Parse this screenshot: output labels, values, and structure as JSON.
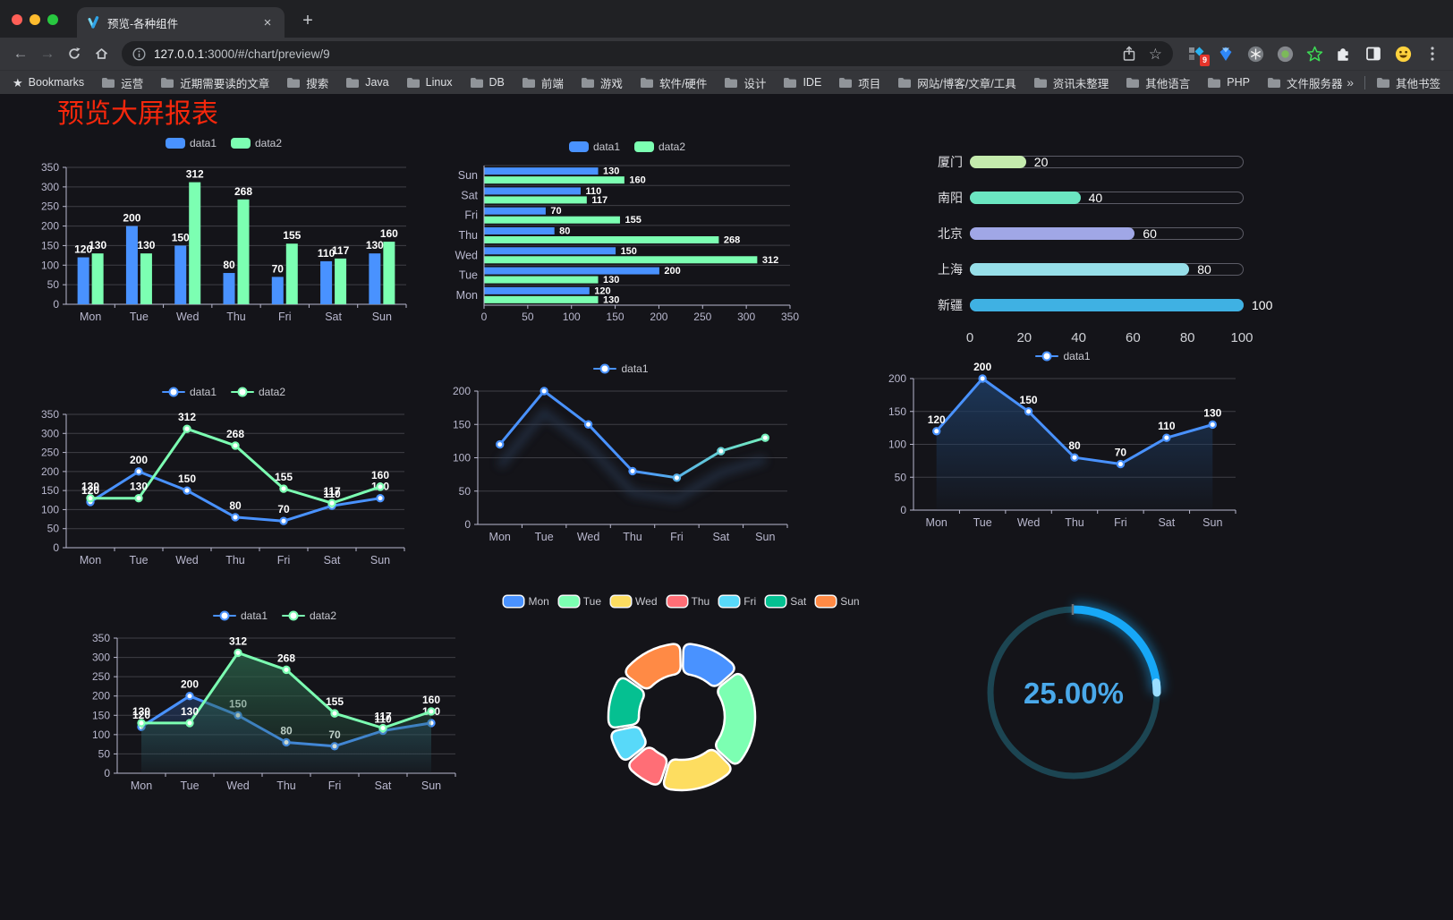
{
  "browser": {
    "tab": {
      "title": "预览-各种组件",
      "close_glyph": "×"
    },
    "new_tab_label": "+",
    "url": {
      "host": "127.0.0.1",
      "rest": ":3000/#/chart/preview/9"
    },
    "extensions_badge": "9",
    "bookmarks": {
      "first_label": "Bookmarks",
      "folders": [
        "运营",
        "近期需要读的文章",
        "搜索",
        "Java",
        "Linux",
        "DB",
        "前端",
        "游戏",
        "软件/硬件",
        "设计",
        "IDE",
        "项目",
        "网站/博客/文章/工具",
        "资讯未整理",
        "其他语言",
        "PHP",
        "文件服务器"
      ],
      "overflow_glyph": "»",
      "other_label": "其他书签"
    }
  },
  "page": {
    "title": "预览大屏报表",
    "title_color": "#f5270c",
    "background": "#141419"
  },
  "chart_data": [
    {
      "id": "bar-vertical",
      "type": "bar",
      "categories": [
        "Mon",
        "Tue",
        "Wed",
        "Thu",
        "Fri",
        "Sat",
        "Sun"
      ],
      "series": [
        {
          "name": "data1",
          "color": "#4992ff",
          "values": [
            120,
            200,
            150,
            80,
            70,
            110,
            130
          ]
        },
        {
          "name": "data2",
          "color": "#7cffb2",
          "values": [
            130,
            130,
            312,
            268,
            155,
            117,
            160
          ]
        }
      ],
      "ylim": [
        0,
        350
      ],
      "ystep": 50,
      "value_labels": true,
      "legend_position": "top",
      "grid": true
    },
    {
      "id": "bar-horizontal",
      "type": "bar-horizontal",
      "categories": [
        "Mon",
        "Tue",
        "Wed",
        "Thu",
        "Fri",
        "Sat",
        "Sun"
      ],
      "display_order_top_to_bottom": [
        "Sun",
        "Sat",
        "Fri",
        "Thu",
        "Wed",
        "Tue",
        "Mon"
      ],
      "series": [
        {
          "name": "data1",
          "color": "#4992ff",
          "values": [
            120,
            200,
            150,
            80,
            70,
            110,
            130
          ]
        },
        {
          "name": "data2",
          "color": "#7cffb2",
          "values": [
            130,
            130,
            312,
            268,
            155,
            117,
            160
          ]
        }
      ],
      "xlim": [
        0,
        350
      ],
      "xstep": 50,
      "value_labels": true,
      "legend_position": "top",
      "grid": true
    },
    {
      "id": "progress-bars",
      "type": "bar-progress",
      "xlim": [
        0,
        100
      ],
      "xticks": [
        0,
        20,
        40,
        60,
        80,
        100
      ],
      "rows": [
        {
          "label": "厦门",
          "value": 20,
          "color": "#c4ebad"
        },
        {
          "label": "南阳",
          "value": 40,
          "color": "#6be6c1"
        },
        {
          "label": "北京",
          "value": 60,
          "color": "#a0a7e6"
        },
        {
          "label": "上海",
          "value": 80,
          "color": "#96dee8"
        },
        {
          "label": "新疆",
          "value": 100,
          "color": "#3fb1e3"
        }
      ]
    },
    {
      "id": "line-dual",
      "type": "line",
      "categories": [
        "Mon",
        "Tue",
        "Wed",
        "Thu",
        "Fri",
        "Sat",
        "Sun"
      ],
      "series": [
        {
          "name": "data1",
          "color": "#4992ff",
          "values": [
            120,
            200,
            150,
            80,
            70,
            110,
            130
          ]
        },
        {
          "name": "data2",
          "color": "#7cffb2",
          "values": [
            130,
            130,
            312,
            268,
            155,
            117,
            160
          ]
        }
      ],
      "ylim": [
        0,
        350
      ],
      "ystep": 50,
      "value_labels": true,
      "legend_position": "top",
      "grid": true
    },
    {
      "id": "line-gradient",
      "type": "line",
      "categories": [
        "Mon",
        "Tue",
        "Wed",
        "Thu",
        "Fri",
        "Sat",
        "Sun"
      ],
      "series": [
        {
          "name": "data1",
          "color": "#4992ff",
          "gradient": [
            "#4992ff",
            "#4992ff",
            "#7cffb2"
          ],
          "shadow": true,
          "values": [
            120,
            200,
            150,
            80,
            70,
            110,
            130
          ]
        }
      ],
      "ylim": [
        0,
        200
      ],
      "ystep": 50,
      "value_labels": false,
      "legend_position": "top",
      "grid": true
    },
    {
      "id": "line-area",
      "type": "line",
      "categories": [
        "Mon",
        "Tue",
        "Wed",
        "Thu",
        "Fri",
        "Sat",
        "Sun"
      ],
      "series": [
        {
          "name": "data1",
          "color": "#4992ff",
          "area": "#1d3a5f",
          "values": [
            120,
            200,
            150,
            80,
            70,
            110,
            130
          ]
        }
      ],
      "ylim": [
        0,
        200
      ],
      "ystep": 50,
      "value_labels": true,
      "legend_position": "top",
      "grid": true
    },
    {
      "id": "line-dual-area",
      "type": "line",
      "categories": [
        "Mon",
        "Tue",
        "Wed",
        "Thu",
        "Fri",
        "Sat",
        "Sun"
      ],
      "series": [
        {
          "name": "data1",
          "color": "#4992ff",
          "area": "#2a4a80",
          "values": [
            120,
            200,
            150,
            80,
            70,
            110,
            130
          ]
        },
        {
          "name": "data2",
          "color": "#7cffb2",
          "area": "#2a6148",
          "values": [
            130,
            130,
            312,
            268,
            155,
            117,
            160
          ]
        }
      ],
      "ylim": [
        0,
        350
      ],
      "ystep": 50,
      "value_labels": true,
      "legend_position": "top",
      "grid": true
    },
    {
      "id": "donut",
      "type": "pie",
      "categories": [
        "Mon",
        "Tue",
        "Wed",
        "Thu",
        "Fri",
        "Sat",
        "Sun"
      ],
      "values": [
        120,
        200,
        150,
        80,
        70,
        110,
        130
      ],
      "colors": [
        "#4992ff",
        "#7cffb2",
        "#fddd60",
        "#ff6e76",
        "#58d9f9",
        "#05c091",
        "#ff8a45"
      ],
      "inner_radius": 48,
      "outer_radius": 82,
      "border_color": "#ffffff",
      "legend_position": "top"
    },
    {
      "id": "gauge",
      "type": "gauge",
      "value_percent": 25,
      "label": "25.00%",
      "progress_color": "#17a8f7",
      "cap_color": "#9adeff",
      "track_color": "#1c4552",
      "text_color": "#4aa9ea"
    }
  ]
}
